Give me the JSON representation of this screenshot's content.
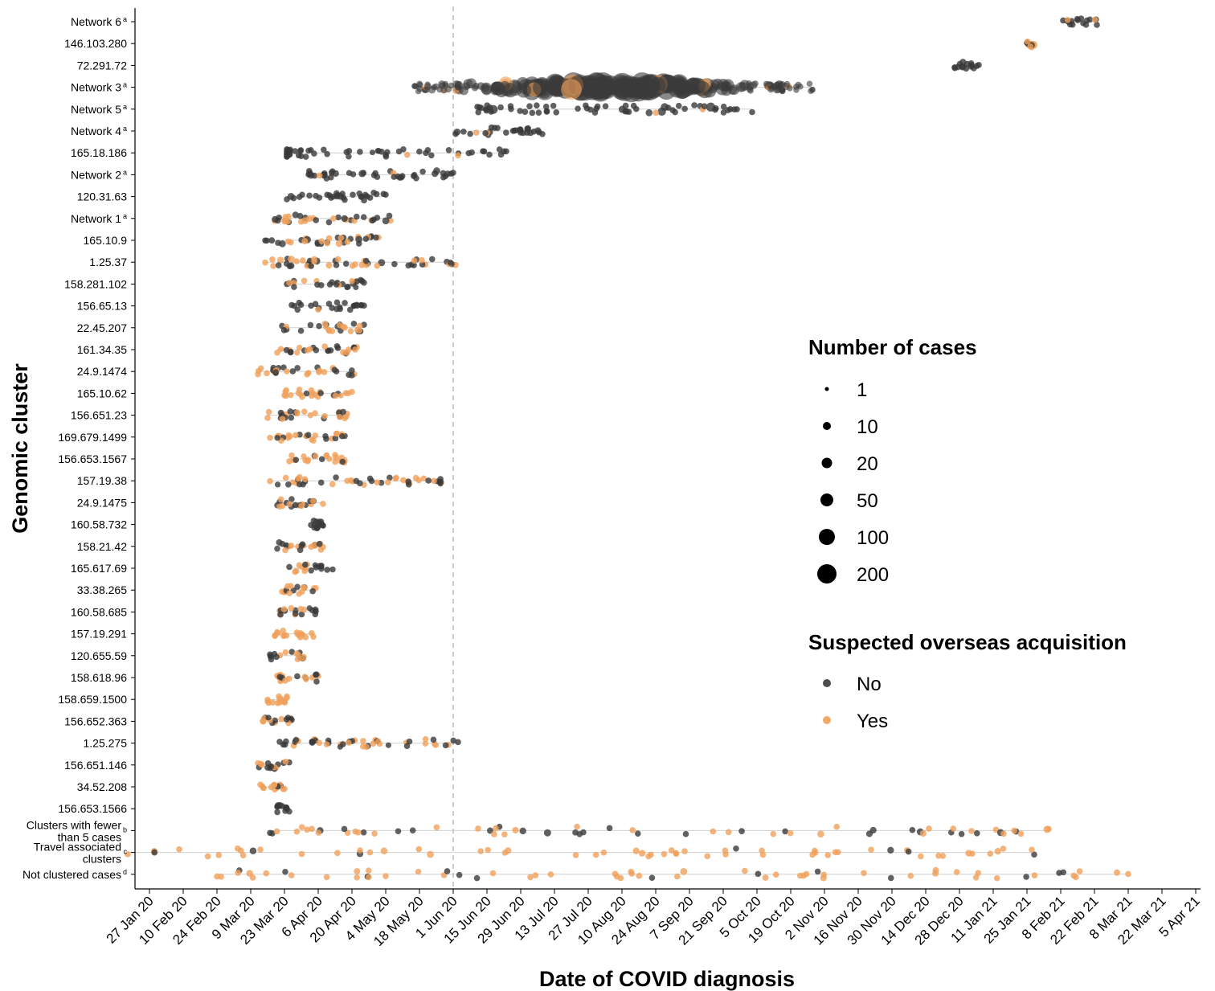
{
  "chart_data": {
    "type": "scatter",
    "xlabel": "Date of COVID diagnosis",
    "ylabel": "Genomic cluster",
    "x_ticks": [
      "27 Jan 20",
      "10 Feb 20",
      "24 Feb 20",
      "9 Mar 20",
      "23 Mar 20",
      "6 Apr 20",
      "20 Apr 20",
      "4 May 20",
      "18 May 20",
      "1 Jun 20",
      "15 Jun 20",
      "29 Jun 20",
      "13 Jul 20",
      "27 Jul 20",
      "10 Aug 20",
      "24 Aug 20",
      "7 Sep 20",
      "21 Sep 20",
      "5 Oct 20",
      "19 Oct 20",
      "2 Nov 20",
      "16 Nov 20",
      "30 Nov 20",
      "14 Dec 20",
      "28 Dec 20",
      "11 Jan 21",
      "25 Jan 21",
      "8 Feb 21",
      "22 Feb 21",
      "8 Mar 21",
      "22 Mar 21",
      "5 Apr 21"
    ],
    "xlim": [
      "2020-01-21",
      "2021-04-07"
    ],
    "reference_line": "2020-06-01",
    "clusters": [
      {
        "label": "Network 6",
        "sup": "a",
        "range": [
          "2021-02-09",
          "2021-02-23"
        ],
        "peak_size": 1,
        "overseas": "mostly No"
      },
      {
        "label": "146.103.280",
        "range": [
          "2021-01-25",
          "2021-01-28"
        ],
        "peak_size": 1,
        "overseas": "mixed"
      },
      {
        "label": "72.291.72",
        "range": [
          "2020-12-26",
          "2021-01-05"
        ],
        "peak_size": 10,
        "overseas": "No"
      },
      {
        "label": "Network 3",
        "sup": "a",
        "range": [
          "2020-05-16",
          "2020-10-28"
        ],
        "peak_size": 200,
        "overseas": "mostly No"
      },
      {
        "label": "Network 5",
        "sup": "a",
        "range": [
          "2020-06-11",
          "2020-10-03"
        ],
        "peak_size": 20,
        "overseas": "mostly No"
      },
      {
        "label": "Network 4",
        "sup": "a",
        "range": [
          "2020-06-02",
          "2020-07-08"
        ],
        "peak_size": 10,
        "overseas": "mostly No"
      },
      {
        "label": "165.18.186",
        "range": [
          "2020-03-24",
          "2020-06-23"
        ],
        "peak_size": 1,
        "overseas": "mostly No"
      },
      {
        "label": "Network 2",
        "sup": "a",
        "range": [
          "2020-04-02",
          "2020-06-01"
        ],
        "peak_size": 10,
        "overseas": "No"
      },
      {
        "label": "120.31.63",
        "range": [
          "2020-03-24",
          "2020-05-04"
        ],
        "peak_size": 10,
        "overseas": "No"
      },
      {
        "label": "Network 1",
        "sup": "a",
        "range": [
          "2020-03-19",
          "2020-05-06"
        ],
        "peak_size": 10,
        "overseas": "mixed"
      },
      {
        "label": "165.10.9",
        "range": [
          "2020-03-15",
          "2020-05-01"
        ],
        "peak_size": 10,
        "overseas": "mixed"
      },
      {
        "label": "1.25.37",
        "range": [
          "2020-03-15",
          "2020-06-02"
        ],
        "peak_size": 10,
        "overseas": "mixed"
      },
      {
        "label": "158.281.102",
        "range": [
          "2020-03-24",
          "2020-04-25"
        ],
        "peak_size": 1,
        "overseas": "mixed"
      },
      {
        "label": "156.65.13",
        "range": [
          "2020-03-26",
          "2020-04-25"
        ],
        "peak_size": 1,
        "overseas": "No"
      },
      {
        "label": "22.45.207",
        "range": [
          "2020-03-22",
          "2020-04-25"
        ],
        "peak_size": 1,
        "overseas": "mixed"
      },
      {
        "label": "161.34.35",
        "range": [
          "2020-03-20",
          "2020-04-22"
        ],
        "peak_size": 1,
        "overseas": "mixed"
      },
      {
        "label": "24.9.1474",
        "range": [
          "2020-03-12",
          "2020-04-21"
        ],
        "peak_size": 10,
        "overseas": "mixed"
      },
      {
        "label": "165.10.62",
        "range": [
          "2020-03-23",
          "2020-04-20"
        ],
        "peak_size": 1,
        "overseas": "Yes"
      },
      {
        "label": "156.651.23",
        "range": [
          "2020-03-16",
          "2020-04-18"
        ],
        "peak_size": 1,
        "overseas": "mixed"
      },
      {
        "label": "169.679.1499",
        "range": [
          "2020-03-17",
          "2020-04-17"
        ],
        "peak_size": 1,
        "overseas": "mixed"
      },
      {
        "label": "156.653.1567",
        "range": [
          "2020-03-25",
          "2020-04-17"
        ],
        "peak_size": 1,
        "overseas": "Yes"
      },
      {
        "label": "157.19.38",
        "range": [
          "2020-03-17",
          "2020-05-27"
        ],
        "peak_size": 1,
        "overseas": "mixed"
      },
      {
        "label": "24.9.1475",
        "range": [
          "2020-03-20",
          "2020-04-08"
        ],
        "peak_size": 1,
        "overseas": "mixed"
      },
      {
        "label": "160.58.732",
        "range": [
          "2020-04-03",
          "2020-04-08"
        ],
        "peak_size": 1,
        "overseas": "No"
      },
      {
        "label": "158.21.42",
        "range": [
          "2020-03-20",
          "2020-04-08"
        ],
        "peak_size": 10,
        "overseas": "mixed"
      },
      {
        "label": "165.617.69",
        "range": [
          "2020-03-25",
          "2020-04-12"
        ],
        "peak_size": 1,
        "overseas": "mixed"
      },
      {
        "label": "33.38.265",
        "range": [
          "2020-03-22",
          "2020-04-05"
        ],
        "peak_size": 1,
        "overseas": "mixed"
      },
      {
        "label": "160.58.685",
        "range": [
          "2020-03-21",
          "2020-04-05"
        ],
        "peak_size": 1,
        "overseas": "mixed"
      },
      {
        "label": "157.19.291",
        "range": [
          "2020-03-19",
          "2020-04-04"
        ],
        "peak_size": 1,
        "overseas": "Yes"
      },
      {
        "label": "120.655.59",
        "range": [
          "2020-03-17",
          "2020-03-31"
        ],
        "peak_size": 1,
        "overseas": "mixed"
      },
      {
        "label": "158.618.96",
        "range": [
          "2020-03-20",
          "2020-04-06"
        ],
        "peak_size": 1,
        "overseas": "mixed"
      },
      {
        "label": "158.659.1500",
        "range": [
          "2020-03-16",
          "2020-03-24"
        ],
        "peak_size": 1,
        "overseas": "Yes"
      },
      {
        "label": "156.652.363",
        "range": [
          "2020-03-14",
          "2020-03-26"
        ],
        "peak_size": 1,
        "overseas": "mixed"
      },
      {
        "label": "1.25.275",
        "range": [
          "2020-03-21",
          "2020-06-03"
        ],
        "peak_size": 1,
        "overseas": "mixed"
      },
      {
        "label": "156.651.146",
        "range": [
          "2020-03-12",
          "2020-03-25"
        ],
        "peak_size": 1,
        "overseas": "mixed"
      },
      {
        "label": "34.52.208",
        "range": [
          "2020-03-13",
          "2020-03-23"
        ],
        "peak_size": 1,
        "overseas": "Yes"
      },
      {
        "label": "156.653.1566",
        "range": [
          "2020-03-20",
          "2020-03-25"
        ],
        "peak_size": 1,
        "overseas": "No"
      },
      {
        "label": "Clusters with fewer than 5 cases",
        "lines": [
          "Clusters with fewer",
          "than 5 cases"
        ],
        "sup": "b",
        "range": [
          "2020-03-17",
          "2021-02-03"
        ],
        "peak_size": 10,
        "overseas": "mixed"
      },
      {
        "label": "Travel associated clusters",
        "lines": [
          "Travel associated",
          "clusters"
        ],
        "sup": "c",
        "range": [
          "2020-01-18",
          "2021-01-28"
        ],
        "peak_size": 10,
        "overseas": "Yes"
      },
      {
        "label": "Not clustered cases",
        "sup": "d",
        "range": [
          "2020-02-24",
          "2021-03-08"
        ],
        "peak_size": 10,
        "overseas": "mostly Yes"
      }
    ],
    "legend": {
      "size_title": "Number of cases",
      "sizes": [
        "1",
        "10",
        "20",
        "50",
        "100",
        "200"
      ],
      "color_title": "Suspected overseas acquisition",
      "colors": [
        {
          "label": "No",
          "color": "#3a3a3a"
        },
        {
          "label": "Yes",
          "color": "#f0a05a"
        }
      ]
    },
    "grid": false,
    "legend_position": "right"
  }
}
